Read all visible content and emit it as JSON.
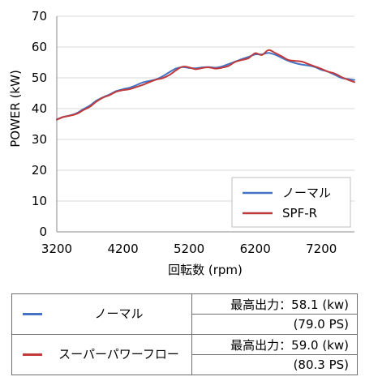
{
  "chart_data": {
    "type": "line",
    "xlabel": "回転数 (rpm)",
    "ylabel": "POWER (kW)",
    "xlim": [
      3200,
      7700
    ],
    "ylim": [
      0,
      70
    ],
    "x_ticks": [
      3200,
      4200,
      5200,
      6200,
      7200
    ],
    "y_ticks": [
      0,
      10,
      20,
      30,
      40,
      50,
      60,
      70
    ],
    "grid": "horizontal",
    "legend_position": "bottom-right",
    "x": [
      3200,
      3300,
      3400,
      3500,
      3600,
      3700,
      3800,
      3900,
      4000,
      4100,
      4200,
      4300,
      4400,
      4500,
      4600,
      4700,
      4800,
      4900,
      5000,
      5100,
      5200,
      5300,
      5400,
      5500,
      5600,
      5700,
      5800,
      5900,
      6000,
      6100,
      6200,
      6300,
      6400,
      6500,
      6600,
      6700,
      6800,
      6900,
      7000,
      7100,
      7200,
      7300,
      7400,
      7500,
      7600,
      7700
    ],
    "series": [
      {
        "name": "ノーマル",
        "color": "#4472c4",
        "values": [
          36.5,
          37.3,
          37.8,
          38.5,
          39.8,
          41.0,
          42.6,
          43.7,
          44.6,
          45.7,
          46.3,
          46.8,
          47.6,
          48.5,
          49.0,
          49.5,
          50.5,
          51.8,
          53.0,
          53.5,
          53.2,
          53.1,
          53.4,
          53.5,
          53.3,
          53.7,
          54.5,
          55.3,
          56.1,
          56.8,
          57.6,
          57.6,
          58.1,
          57.5,
          56.5,
          55.5,
          54.8,
          54.3,
          54.0,
          53.5,
          52.6,
          52.0,
          51.0,
          50.0,
          49.6,
          49.3
        ]
      },
      {
        "name": "SPF-R",
        "color": "#c0393b",
        "values": [
          36.4,
          37.3,
          37.7,
          38.3,
          39.5,
          40.6,
          42.3,
          43.6,
          44.4,
          45.5,
          46.0,
          46.3,
          47.0,
          47.7,
          48.6,
          49.4,
          49.9,
          50.9,
          52.4,
          53.6,
          53.4,
          52.8,
          53.2,
          53.4,
          53.0,
          53.3,
          53.9,
          55.2,
          55.8,
          56.4,
          58.0,
          57.4,
          59.0,
          58.1,
          57.0,
          55.8,
          55.5,
          55.3,
          54.5,
          53.7,
          52.9,
          52.0,
          51.4,
          50.3,
          49.4,
          48.6
        ]
      }
    ]
  },
  "table": {
    "rows": [
      {
        "label": "ノーマル",
        "color": "#4472c4",
        "max_power": "最高出力：58.1 (kw)",
        "ps": "(79.0 PS)"
      },
      {
        "label": "スーパーパワーフロー",
        "color": "#c0393b",
        "max_power": "最高出力：59.0 (kw)",
        "ps": "(80.3 PS)"
      }
    ]
  }
}
